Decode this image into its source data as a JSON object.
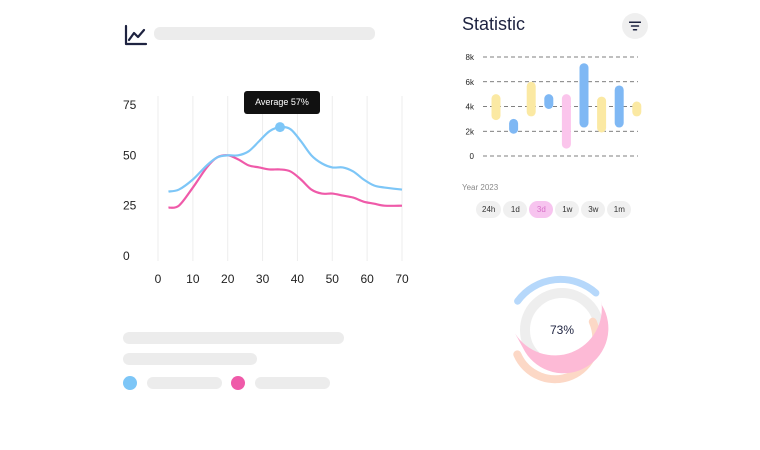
{
  "colors": {
    "blue": "#7dc6f7",
    "pink": "#ef5aa9",
    "bar_yellow": "#fbe9a3",
    "bar_blue": "#7fb8f4",
    "bar_pink": "#fbc5ec",
    "skeleton": "#ececec"
  },
  "icons": {
    "chart": "line-chart-icon",
    "filter": "filter-icon"
  },
  "line_chart": {
    "tooltip": "Average 57%"
  },
  "statistic": {
    "title": "Statistic",
    "year_label": "Year 2023",
    "time_ranges": [
      {
        "label": "24h",
        "active": false
      },
      {
        "label": "1d",
        "active": false
      },
      {
        "label": "3d",
        "active": true
      },
      {
        "label": "1w",
        "active": false
      },
      {
        "label": "3w",
        "active": false
      },
      {
        "label": "1m",
        "active": false
      }
    ]
  },
  "donut": {
    "label": "73%",
    "value": 73
  },
  "chart_data": [
    {
      "type": "line",
      "x": [
        3,
        6,
        10,
        14,
        17,
        20,
        23,
        26,
        29,
        32,
        35,
        38,
        41,
        44,
        47,
        50,
        53,
        56,
        59,
        62,
        65,
        70
      ],
      "series": [
        {
          "name": "blue",
          "values": [
            32,
            33,
            38,
            45,
            49,
            50,
            50,
            52,
            57,
            62,
            64,
            63,
            57,
            50,
            46,
            44,
            44,
            42,
            38,
            35,
            34,
            33
          ]
        },
        {
          "name": "pink",
          "values": [
            24,
            25,
            34,
            44,
            49,
            50,
            48,
            45,
            44,
            43,
            43,
            42,
            38,
            33,
            31,
            31,
            30,
            29,
            27,
            26,
            25,
            25
          ]
        }
      ],
      "highlight": {
        "series": "blue",
        "x": 35,
        "y": 64
      },
      "xticks": [
        0,
        10,
        20,
        30,
        40,
        50,
        60,
        70
      ],
      "yticks": [
        0,
        25,
        50,
        75
      ],
      "xlim": [
        0,
        70
      ],
      "ylim": [
        0,
        75
      ],
      "title": "",
      "xlabel": "",
      "ylabel": ""
    },
    {
      "type": "bar",
      "subtype": "floating-range",
      "yticks": [
        "0",
        "2k",
        "4k",
        "6k",
        "8k"
      ],
      "ylim": [
        0,
        8000
      ],
      "bars": [
        {
          "low": 2900,
          "high": 5000,
          "color": "bar_yellow"
        },
        {
          "low": 1800,
          "high": 3000,
          "color": "bar_blue"
        },
        {
          "low": 3200,
          "high": 6000,
          "color": "bar_yellow"
        },
        {
          "low": 3800,
          "high": 5000,
          "color": "bar_blue"
        },
        {
          "low": 600,
          "high": 5000,
          "color": "bar_pink"
        },
        {
          "low": 2300,
          "high": 7500,
          "color": "bar_blue"
        },
        {
          "low": 1900,
          "high": 4800,
          "color": "bar_yellow"
        },
        {
          "low": 2300,
          "high": 5700,
          "color": "bar_blue"
        },
        {
          "low": 3200,
          "high": 4400,
          "color": "bar_yellow"
        }
      ]
    }
  ]
}
